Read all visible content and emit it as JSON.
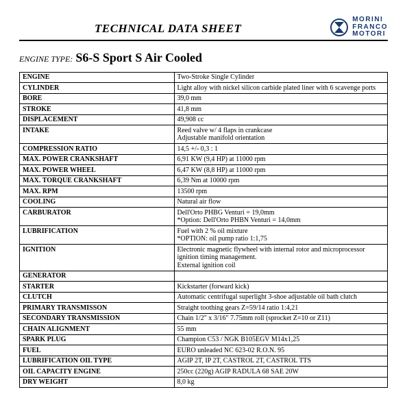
{
  "header": {
    "title": "TECHNICAL DATA SHEET",
    "brand_line1": "MORINI",
    "brand_line2": "FRANCO",
    "brand_line3": "MOTORI",
    "brand_color": "#1a3a6e"
  },
  "engine": {
    "label": "ENGINE TYPE:",
    "value": "S6-S Sport S Air Cooled"
  },
  "spec_rows": [
    {
      "label": "ENGINE",
      "value": "Two-Stroke Single Cylinder"
    },
    {
      "label": "CYLINDER",
      "value": "Light alloy with nickel silicon carbide plated liner with 6 scavenge ports"
    },
    {
      "label": "BORE",
      "value": "39,0 mm"
    },
    {
      "label": "STROKE",
      "value": "41,8 mm"
    },
    {
      "label": "DISPLACEMENT",
      "value": "49,908 cc"
    },
    {
      "label": "INTAKE",
      "value": "Reed valve w/ 4 flaps in crankcase\nAdjustable manifold orientation"
    },
    {
      "label": "COMPRESSION RATIO",
      "value": "14,5 +/- 0,3 : 1"
    },
    {
      "label": "MAX. POWER CRANKSHAFT",
      "value": "6,91 KW  (9,4 HP) at 11000 rpm"
    },
    {
      "label": "MAX. POWER WHEEL",
      "value": "6,47 KW  (8,8 HP) at 11000 rpm"
    },
    {
      "label": "MAX. TORQUE CRANKSHAFT",
      "value": "6,39 Nm at 10000 rpm"
    },
    {
      "label": "MAX. RPM",
      "value": "13500 rpm"
    },
    {
      "label": "COOLING",
      "value": "Natural air flow"
    },
    {
      "label": "CARBURATOR",
      "value": "Dell'Orto PHBG   Venturi = 19,0mm\n*Option: Dell'Orto PHBN   Venturi = 14,0mm"
    },
    {
      "label": "LUBRIFICATION",
      "value": "Fuel with 2 % oil mixture\n*OPTION: oil pump ratio 1:1,75"
    },
    {
      "label": "IGNITION",
      "value": "Electronic magnetic flywheel with internal rotor and microprocessor ignition timing management.\nExternal ignition coil"
    },
    {
      "label": "GENERATOR",
      "value": ""
    },
    {
      "label": "STARTER",
      "value": "Kickstarter (forward kick)"
    },
    {
      "label": "CLUTCH",
      "value": "Automatic centrifugal superlight 3-shoe adjustable oil bath clutch"
    },
    {
      "label": "PRIMARY TRANSMISSON",
      "value": "Straight toothing gears Z=59/14  ratio 1:4,21"
    },
    {
      "label": "SECONDARY TRANSMISSION",
      "value": "Chain 1/2\" x 3/16\" 7.75mm roll (sprocket Z=10 or Z11)"
    },
    {
      "label": "CHAIN ALIGNMENT",
      "value": "55 mm"
    },
    {
      "label": "SPARK PLUG",
      "value": "Champion C53 / NGK B105EGV        M14x1,25"
    },
    {
      "label": "FUEL",
      "value": "EURO unleaded NC 623-02 R.O.N. 95"
    },
    {
      "label": "LUBRIFICATION OIL TYPE",
      "value": "AGIP 2T, IP 2T, CASTROL 2T, CASTROL TTS"
    },
    {
      "label": "OIL CAPACITY ENGINE",
      "value": "250cc (220g) AGIP RADULA 68 SAE 20W"
    },
    {
      "label": "DRY WEIGHT",
      "value": "8,0 kg"
    }
  ]
}
